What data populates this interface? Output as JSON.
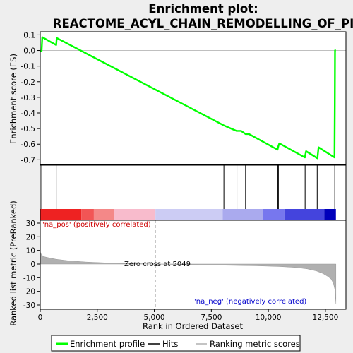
{
  "chart_data": {
    "type": "line",
    "title_line1": "Enrichment plot:",
    "title_line2": "REACTOME_ACYL_CHAIN_REMODELLING_OF_PI",
    "es_panel": {
      "ylabel": "Enrichment score (ES)",
      "ylim": [
        -0.73,
        0.12
      ],
      "yticks": [
        0.1,
        0.0,
        -0.1,
        -0.2,
        -0.3,
        -0.4,
        -0.5,
        -0.6,
        -0.7
      ],
      "ytick_labels": [
        "0.1",
        "0.0",
        "-0.1",
        "-0.2",
        "-0.3",
        "-0.4",
        "-0.5",
        "-0.6",
        "-0.7"
      ],
      "grid": false,
      "series": [
        {
          "name": "Enrichment profile",
          "color": "#00ff00",
          "x": [
            0,
            60,
            90,
            700,
            720,
            8050,
            8200,
            8600,
            8800,
            9000,
            9150,
            10400,
            10440,
            10480,
            11600,
            11650,
            12150,
            12200,
            12900,
            12910,
            12920,
            12960
          ],
          "y": [
            -0.005,
            -0.005,
            0.085,
            0.035,
            0.08,
            -0.48,
            -0.49,
            -0.515,
            -0.515,
            -0.535,
            -0.535,
            -0.635,
            -0.61,
            -0.595,
            -0.685,
            -0.645,
            -0.69,
            -0.62,
            -0.685,
            -0.35,
            0.0,
            0.0
          ]
        }
      ]
    },
    "hits": {
      "label": "Hits",
      "color": "#000000",
      "positions": [
        65,
        700,
        8050,
        8620,
        9000,
        10410,
        10440,
        11610,
        12140,
        12910
      ]
    },
    "heatmap_bar": {
      "segments": [
        {
          "from": 0,
          "to": 1800,
          "color": "#ee2222"
        },
        {
          "from": 1800,
          "to": 2350,
          "color": "#f25555"
        },
        {
          "from": 2350,
          "to": 3250,
          "color": "#f48888"
        },
        {
          "from": 3250,
          "to": 5050,
          "color": "#f8bbcc"
        },
        {
          "from": 5050,
          "to": 8000,
          "color": "#ccccf4"
        },
        {
          "from": 8000,
          "to": 9750,
          "color": "#aaaaee"
        },
        {
          "from": 9750,
          "to": 10700,
          "color": "#7777ee"
        },
        {
          "from": 10700,
          "to": 12450,
          "color": "#4444dd"
        },
        {
          "from": 12450,
          "to": 12960,
          "color": "#0000bb"
        }
      ]
    },
    "metric_panel": {
      "ylabel": "Ranked list metric (PreRanked)",
      "xlabel": "Rank in Ordered Dataset",
      "ylim": [
        -30,
        30
      ],
      "yticks": [
        30,
        20,
        10,
        0,
        -10,
        -20,
        -30
      ],
      "ytick_labels": [
        "30",
        "20",
        "10",
        "0",
        "-10",
        "-20",
        "-30"
      ],
      "series": [
        {
          "name": "Ranking metric scores",
          "color": "#b0b0b0",
          "x": [
            0,
            50,
            150,
            400,
            700,
            1200,
            2000,
            3000,
            4000,
            5049,
            6500,
            8000,
            9500,
            10500,
            11200,
            11700,
            12100,
            12400,
            12600,
            12750,
            12850,
            12920,
            12960
          ],
          "y": [
            9,
            7,
            5.5,
            4.5,
            3.5,
            2.5,
            1.5,
            0.8,
            0.4,
            0,
            -0.5,
            -0.9,
            -1.3,
            -1.8,
            -2.5,
            -3.5,
            -5,
            -7,
            -9,
            -11,
            -14,
            -19,
            -29
          ]
        }
      ],
      "zero_cross_label": "Zero cross at 5049",
      "zero_cross_x": 5049,
      "pos_label": "'na_pos' (positively correlated)",
      "neg_label": "'na_neg' (negatively correlated)"
    },
    "xaxis": {
      "xlim": [
        0,
        13400
      ],
      "ticks": [
        0,
        2500,
        5000,
        7500,
        10000,
        12500
      ],
      "tick_labels": [
        "0",
        "2,500",
        "5,000",
        "7,500",
        "10,000",
        "12,500"
      ]
    },
    "legend": {
      "placement": "bottom",
      "items": [
        {
          "label": "Enrichment profile",
          "color": "#00ff00"
        },
        {
          "label": "Hits",
          "color": "#000000"
        },
        {
          "label": "Ranking metric scores",
          "color": "#b0b0b0"
        }
      ]
    }
  }
}
